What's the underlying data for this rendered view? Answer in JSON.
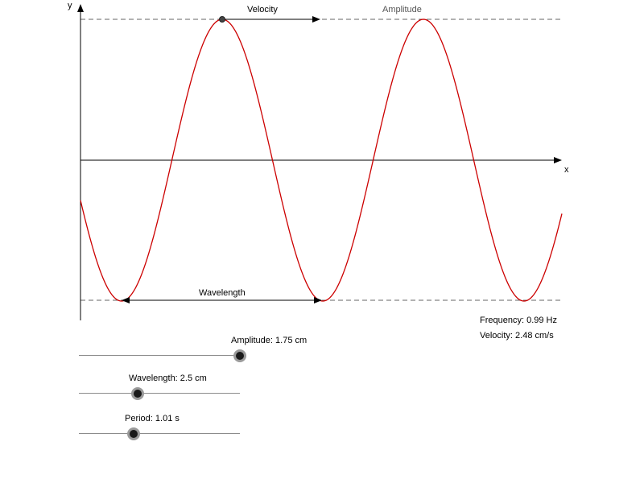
{
  "axes": {
    "x_label": "x",
    "y_label": "y"
  },
  "annotations": {
    "velocity": "Velocity",
    "amplitude": "Amplitude",
    "wavelength": "Wavelength"
  },
  "readouts": {
    "frequency": "Frequency: 0.99 Hz",
    "velocity": "Velocity: 2.48 cm/s"
  },
  "sliders": {
    "amplitude": {
      "label": "Amplitude: 1.75 cm",
      "value": 1.75,
      "fraction": 1.0
    },
    "wavelength": {
      "label": "Wavelength: 2.5 cm",
      "value": 2.5,
      "fraction": 0.365
    },
    "period": {
      "label": "Period: 1.01 s",
      "value": 1.01,
      "fraction": 0.34
    }
  },
  "wave": {
    "color": "#cc0000",
    "amplitude_cm": 1.75,
    "wavelength_cm": 2.5,
    "period_s": 1.01
  },
  "colors": {
    "axis": "#000000",
    "dashed_guide": "#666666",
    "amplitude_label": "#555555"
  }
}
